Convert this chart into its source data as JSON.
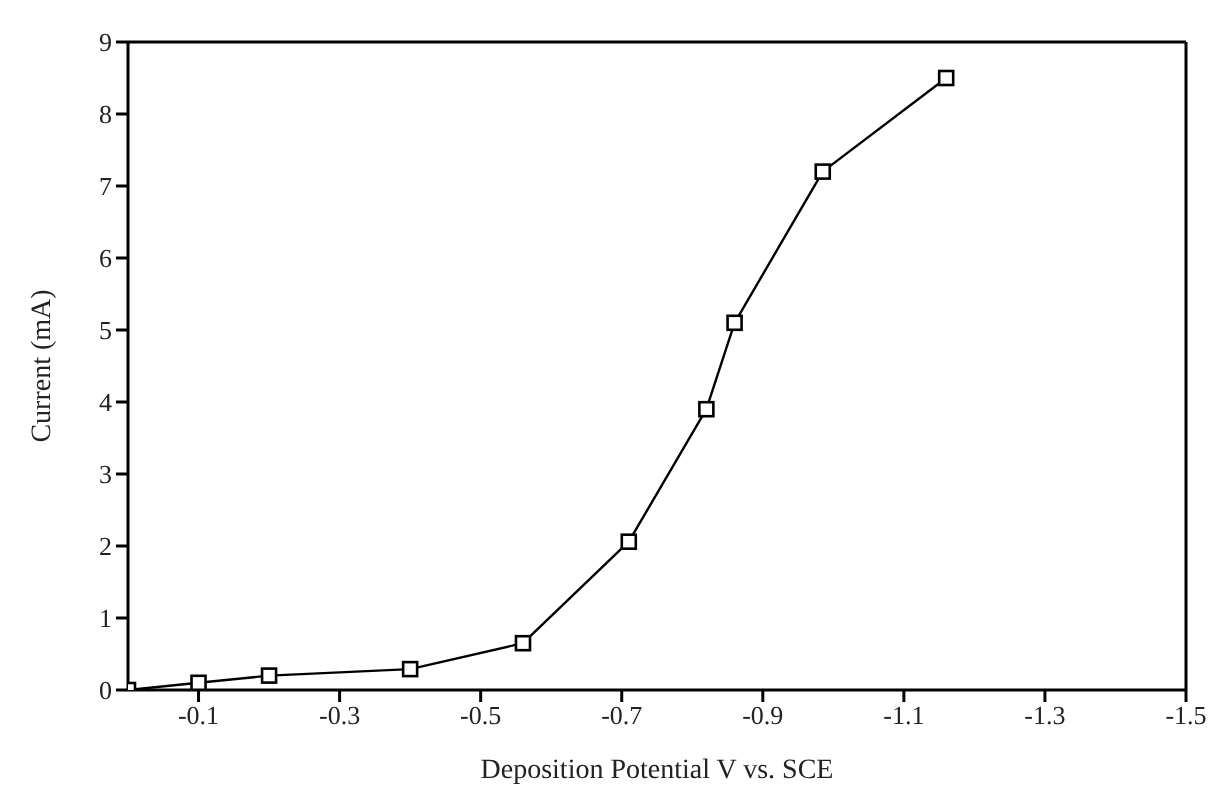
{
  "chart_data": {
    "type": "line",
    "xlabel": "Deposition Potential V vs. SCE",
    "ylabel": "Current (mA)",
    "x": [
      0,
      -0.1,
      -0.2,
      -0.4,
      -0.56,
      -0.71,
      -0.82,
      -0.86,
      -0.985,
      -1.16
    ],
    "series": [
      {
        "color": "#000000",
        "values": [
          0,
          0.1,
          0.2,
          0.29,
          0.65,
          2.06,
          3.9,
          5.1,
          7.2,
          8.5
        ]
      }
    ],
    "xlim": [
      0,
      -1.5
    ],
    "xticks": [
      -0.1,
      -0.3,
      -0.5,
      -0.7,
      -0.9,
      -1.1,
      -1.3,
      -1.5
    ],
    "ylim": [
      0,
      9
    ],
    "yticks": [
      0,
      1,
      2,
      3,
      4,
      5,
      6,
      7,
      8,
      9
    ],
    "marker": "square",
    "grid": false
  }
}
